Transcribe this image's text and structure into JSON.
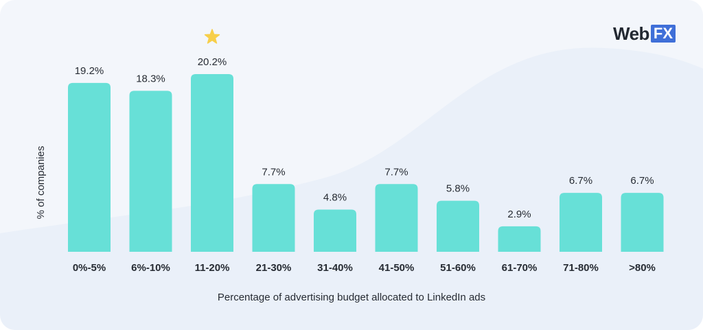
{
  "brand": {
    "logo_part1": "Web",
    "logo_part2": "FX"
  },
  "colors": {
    "bar": "#67e0d7",
    "star": "#f7cf4a",
    "text": "#262b33",
    "background": "#f3f6fb",
    "logo_box": "#3f6fd8"
  },
  "chart_data": {
    "type": "bar",
    "categories": [
      "0%-5%",
      "6%-10%",
      "11-20%",
      "21-30%",
      "31-40%",
      "41-50%",
      "51-60%",
      "61-70%",
      "71-80%",
      ">80%"
    ],
    "values": [
      19.2,
      18.3,
      20.2,
      7.7,
      4.8,
      7.7,
      5.8,
      2.9,
      6.7,
      6.7
    ],
    "value_labels": [
      "19.2%",
      "18.3%",
      "20.2%",
      "7.7%",
      "4.8%",
      "7.7%",
      "5.8%",
      "2.9%",
      "6.7%",
      "6.7%"
    ],
    "highlight_category": "11-20%",
    "highlight_icon": "star-icon",
    "xlabel": "Percentage of advertising budget allocated to LinkedIn ads",
    "ylabel": "% of companies",
    "ylim": [
      0,
      20.2
    ],
    "grid": false,
    "legend": "none"
  }
}
